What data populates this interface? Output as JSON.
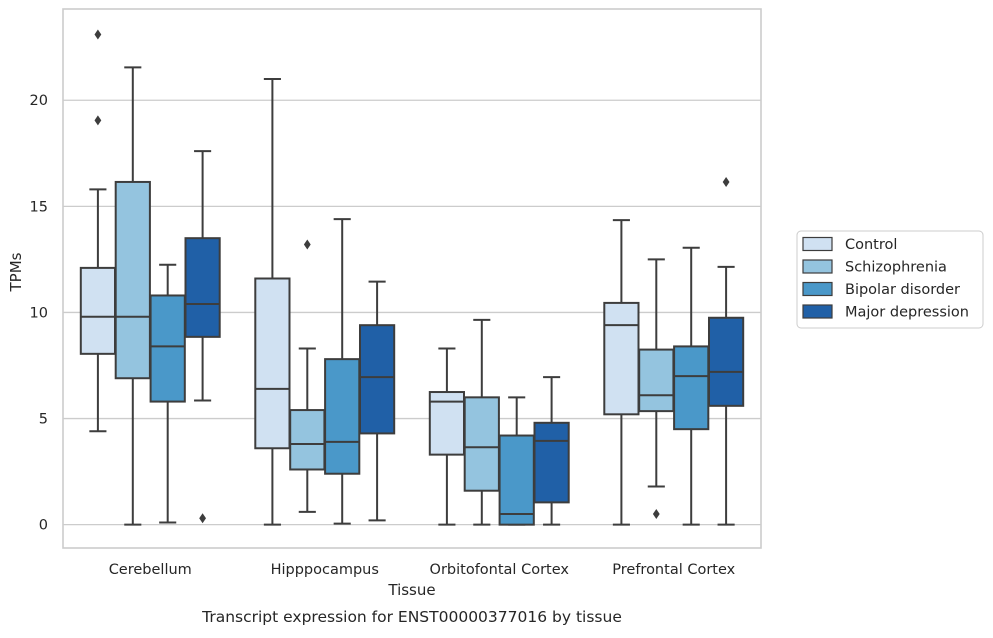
{
  "chart_data": {
    "type": "box",
    "title": "",
    "caption": "Transcript expression for ENST00000377016 by tissue",
    "xlabel": "Tissue",
    "ylabel": "TPMs",
    "ylim": [
      -1.1,
      24.3
    ],
    "yticks": [
      0,
      5,
      10,
      15,
      20
    ],
    "grid": true,
    "legend_position": "right",
    "categories": [
      "Cerebellum",
      "Hipppocampus",
      "Orbitofontal Cortex",
      "Prefrontal Cortex"
    ],
    "series": [
      {
        "name": "Control",
        "color": "#d0e1f2",
        "boxes": [
          {
            "whislo": 4.4,
            "q1": 8.05,
            "med": 9.8,
            "q3": 12.1,
            "whishi": 15.8,
            "fliers": [
              19.05,
              23.1
            ]
          },
          {
            "whislo": 0.0,
            "q1": 3.6,
            "med": 6.4,
            "q3": 11.6,
            "whishi": 21.0,
            "fliers": []
          },
          {
            "whislo": 0.0,
            "q1": 3.3,
            "med": 5.8,
            "q3": 6.25,
            "whishi": 8.3,
            "fliers": []
          },
          {
            "whislo": 0.0,
            "q1": 5.2,
            "med": 9.4,
            "q3": 10.45,
            "whishi": 14.35,
            "fliers": []
          }
        ]
      },
      {
        "name": "Schizophrenia",
        "color": "#94c4df",
        "boxes": [
          {
            "whislo": 0.0,
            "q1": 6.9,
            "med": 9.8,
            "q3": 16.15,
            "whishi": 21.55,
            "fliers": []
          },
          {
            "whislo": 0.6,
            "q1": 2.6,
            "med": 3.8,
            "q3": 5.4,
            "whishi": 8.3,
            "fliers": [
              13.2
            ]
          },
          {
            "whislo": 0.0,
            "q1": 1.6,
            "med": 3.65,
            "q3": 6.0,
            "whishi": 9.65,
            "fliers": []
          },
          {
            "whislo": 1.8,
            "q1": 5.35,
            "med": 6.1,
            "q3": 8.25,
            "whishi": 12.5,
            "fliers": [
              0.5
            ]
          }
        ]
      },
      {
        "name": "Bipolar disorder",
        "color": "#4a98c9",
        "boxes": [
          {
            "whislo": 0.1,
            "q1": 5.8,
            "med": 8.4,
            "q3": 10.8,
            "whishi": 12.25,
            "fliers": []
          },
          {
            "whislo": 0.05,
            "q1": 2.4,
            "med": 3.9,
            "q3": 7.8,
            "whishi": 14.4,
            "fliers": []
          },
          {
            "whislo": 0.0,
            "q1": 0.0,
            "med": 0.5,
            "q3": 4.2,
            "whishi": 6.0,
            "fliers": []
          },
          {
            "whislo": 0.0,
            "q1": 4.5,
            "med": 7.0,
            "q3": 8.4,
            "whishi": 13.05,
            "fliers": []
          }
        ]
      },
      {
        "name": "Major depression",
        "color": "#2060a7",
        "boxes": [
          {
            "whislo": 5.85,
            "q1": 8.85,
            "med": 10.4,
            "q3": 13.5,
            "whishi": 17.6,
            "fliers": [
              0.3
            ]
          },
          {
            "whislo": 0.2,
            "q1": 4.3,
            "med": 6.95,
            "q3": 9.4,
            "whishi": 11.45,
            "fliers": []
          },
          {
            "whislo": 0.0,
            "q1": 1.05,
            "med": 3.95,
            "q3": 4.8,
            "whishi": 6.95,
            "fliers": []
          },
          {
            "whislo": 0.0,
            "q1": 5.6,
            "med": 7.2,
            "q3": 9.75,
            "whishi": 12.15,
            "fliers": [
              16.15
            ]
          }
        ]
      }
    ]
  }
}
